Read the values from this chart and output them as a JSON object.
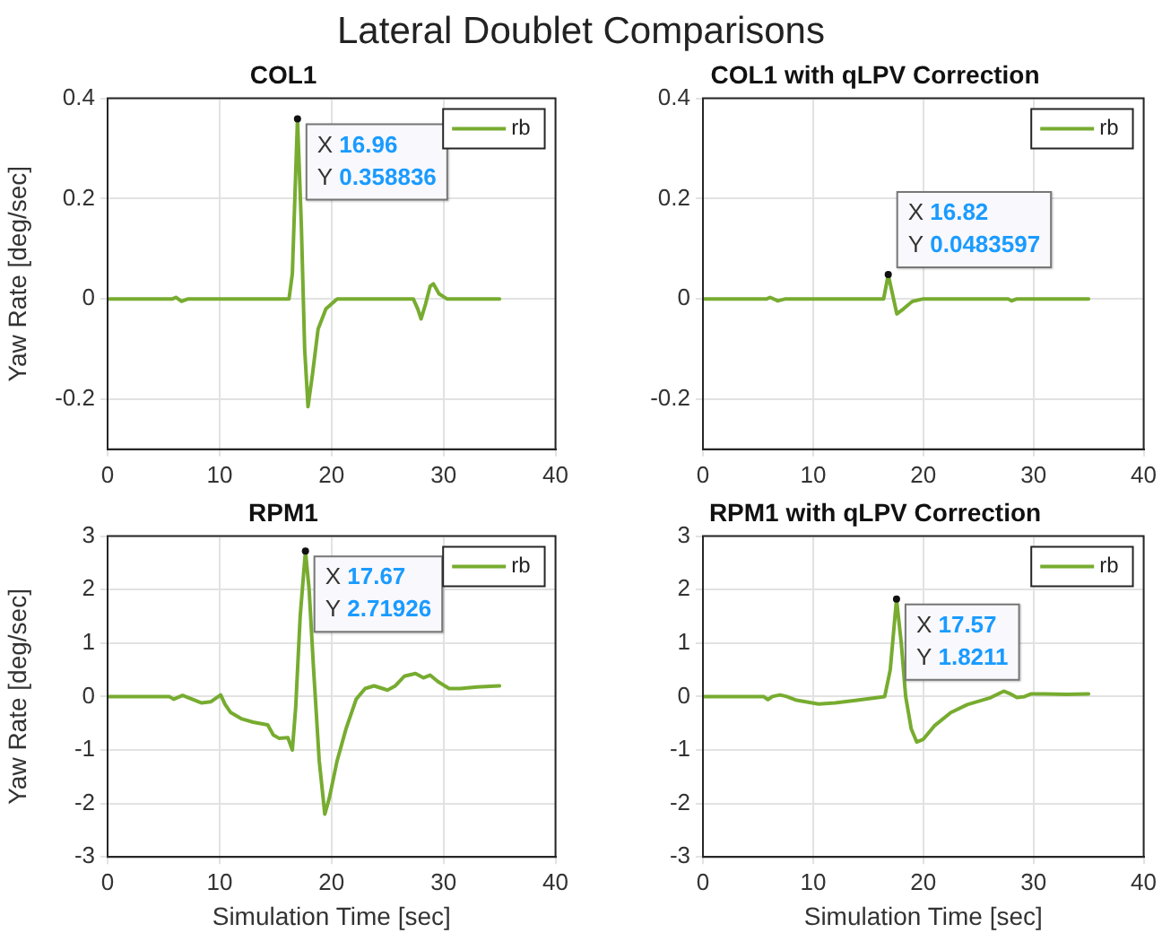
{
  "chart_data": [
    {
      "type": "line",
      "title": "COL1",
      "ylabel": "Yaw Rate [deg/sec]",
      "annotations": [
        "Lateral Doublet Comparisons",
        {
          "text": "X 16.96\nY 0.358836",
          "x": 16.96,
          "y": 0.358836
        }
      ],
      "xlim": [
        0,
        40
      ],
      "xticks": [
        0,
        10,
        20,
        30,
        40
      ],
      "ylim": [
        -0.3,
        0.4
      ],
      "yticks": [
        -0.2,
        0,
        0.2,
        0.4
      ],
      "grid": true,
      "legend": "top right",
      "marker": "none",
      "line_style": "solid",
      "series": [
        {
          "name": "rb",
          "color": "#77ac30",
          "x": [
            0,
            5.8,
            6.1,
            6.6,
            7.2,
            16.2,
            16.5,
            16.96,
            17.3,
            17.6,
            17.9,
            18.3,
            18.8,
            19.5,
            20.5,
            27.3,
            27.7,
            28.0,
            28.4,
            28.8,
            29.1,
            29.6,
            30.3,
            35
          ],
          "values": [
            0,
            0,
            0.003,
            -0.005,
            0,
            0,
            0.05,
            0.358836,
            0.15,
            -0.1,
            -0.215,
            -0.15,
            -0.06,
            -0.02,
            0,
            0,
            -0.02,
            -0.04,
            -0.01,
            0.025,
            0.03,
            0.01,
            0,
            0
          ]
        }
      ]
    },
    {
      "type": "line",
      "title": "COL1 with qLPV Correction",
      "annotations": [
        {
          "text": "X 16.82\nY 0.0483597",
          "x": 16.82,
          "y": 0.0483597
        }
      ],
      "xlim": [
        0,
        40
      ],
      "xticks": [
        0,
        10,
        20,
        30,
        40
      ],
      "ylim": [
        -0.3,
        0.4
      ],
      "yticks": [
        -0.2,
        0,
        0.2,
        0.4
      ],
      "grid": true,
      "legend": "top right",
      "marker": "none",
      "line_style": "solid",
      "series": [
        {
          "name": "rb",
          "color": "#77ac30",
          "x": [
            0,
            5.8,
            6.1,
            6.8,
            7.5,
            16.4,
            16.82,
            17.2,
            17.6,
            18.2,
            19,
            20,
            27.7,
            28,
            28.5,
            35
          ],
          "values": [
            0,
            0,
            0.003,
            -0.004,
            0,
            0,
            0.0483597,
            0.01,
            -0.03,
            -0.02,
            -0.005,
            0,
            0,
            -0.004,
            0,
            0
          ]
        }
      ]
    },
    {
      "type": "line",
      "title": "RPM1",
      "xlabel": "Simulation Time [sec]",
      "ylabel": "Yaw Rate [deg/sec]",
      "annotations": [
        {
          "text": "X 17.67\nY 2.71926",
          "x": 17.67,
          "y": 2.71926
        }
      ],
      "xlim": [
        0,
        40
      ],
      "xticks": [
        0,
        10,
        20,
        30,
        40
      ],
      "ylim": [
        -3,
        3
      ],
      "yticks": [
        -3,
        -2,
        -1,
        0,
        1,
        2,
        3
      ],
      "grid": true,
      "legend": "top right",
      "marker": "none",
      "line_style": "solid",
      "series": [
        {
          "name": "rb",
          "color": "#77ac30",
          "x": [
            0,
            5.5,
            5.9,
            6.7,
            7.3,
            8.4,
            9.2,
            10.1,
            10.5,
            11,
            12,
            13,
            14.3,
            14.8,
            15.3,
            16.1,
            16.5,
            16.8,
            17.2,
            17.67,
            18.0,
            18.4,
            18.9,
            19.4,
            19.8,
            20.5,
            21.3,
            22.2,
            23,
            23.8,
            25,
            25.7,
            26.5,
            27.5,
            28.2,
            28.8,
            29.5,
            30.5,
            31.5,
            33,
            35
          ],
          "values": [
            0,
            0,
            -0.05,
            0.02,
            -0.03,
            -0.12,
            -0.1,
            0.03,
            -0.15,
            -0.3,
            -0.42,
            -0.48,
            -0.53,
            -0.72,
            -0.78,
            -0.77,
            -1.0,
            -0.2,
            1.5,
            2.71926,
            2.0,
            0.5,
            -1.2,
            -2.2,
            -1.9,
            -1.2,
            -0.6,
            -0.05,
            0.15,
            0.2,
            0.12,
            0.2,
            0.38,
            0.43,
            0.35,
            0.4,
            0.28,
            0.15,
            0.15,
            0.18,
            0.2
          ]
        }
      ]
    },
    {
      "type": "line",
      "title": "RPM1 with qLPV Correction",
      "xlabel": "Simulation Time [sec]",
      "annotations": [
        {
          "text": "X 17.57\nY 1.8211",
          "x": 17.57,
          "y": 1.8211
        }
      ],
      "xlim": [
        0,
        40
      ],
      "xticks": [
        0,
        10,
        20,
        30,
        40
      ],
      "ylim": [
        -3,
        3
      ],
      "yticks": [
        -3,
        -2,
        -1,
        0,
        1,
        2,
        3
      ],
      "grid": true,
      "legend": "top right",
      "marker": "none",
      "line_style": "solid",
      "series": [
        {
          "name": "rb",
          "color": "#77ac30",
          "x": [
            0,
            5.5,
            5.9,
            6.3,
            7,
            7.6,
            8.5,
            10.5,
            12,
            14,
            16.5,
            17.0,
            17.57,
            18.0,
            18.4,
            18.9,
            19.4,
            20,
            21,
            22.5,
            24,
            26,
            27.3,
            27.8,
            28.5,
            29.2,
            29.8,
            31,
            33,
            35
          ],
          "values": [
            0,
            0,
            -0.06,
            0,
            0.03,
            0,
            -0.07,
            -0.14,
            -0.12,
            -0.07,
            0,
            0.5,
            1.8211,
            1.0,
            0,
            -0.6,
            -0.85,
            -0.8,
            -0.55,
            -0.3,
            -0.15,
            -0.03,
            0.1,
            0.06,
            -0.02,
            0,
            0.05,
            0.05,
            0.04,
            0.05
          ]
        }
      ]
    }
  ]
}
